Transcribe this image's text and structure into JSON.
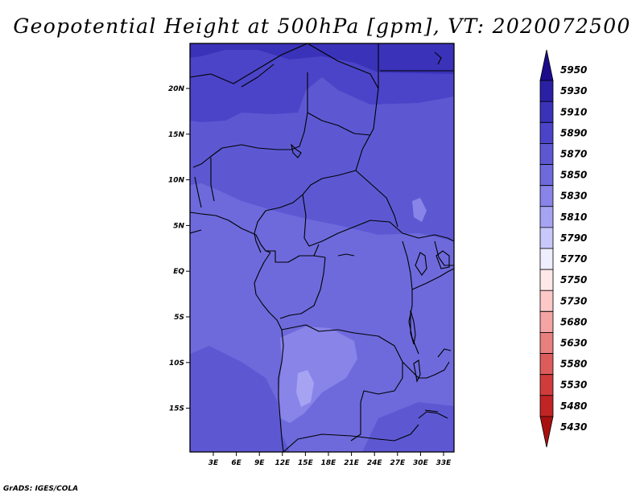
{
  "title": "Geopotential Height at 500hPa [gpm], VT: 2020072500",
  "footer": "GrADS: IGES/COLA",
  "lat_labels": [
    "20N",
    "15N",
    "10N",
    "5N",
    "EQ",
    "5S",
    "10S",
    "15S"
  ],
  "lon_labels": [
    "3E",
    "6E",
    "9E",
    "12E",
    "15E",
    "18E",
    "21E",
    "24E",
    "27E",
    "30E",
    "33E"
  ],
  "colorbar": {
    "labels": [
      "5950",
      "5930",
      "5910",
      "5890",
      "5870",
      "5850",
      "5830",
      "5810",
      "5790",
      "5770",
      "5750",
      "5730",
      "5680",
      "5630",
      "5580",
      "5530",
      "5480",
      "5430"
    ],
    "colors": [
      "#1c0c8c",
      "#2a20a4",
      "#3a32b8",
      "#4b44c8",
      "#5d58d2",
      "#6e6adc",
      "#8884e8",
      "#a6a4f2",
      "#c8c8fa",
      "#eeeeff",
      "#ffe8e8",
      "#fcc8c8",
      "#f4a4a4",
      "#e88080",
      "#dc5c5c",
      "#d03c3c",
      "#c02424",
      "#a81010"
    ]
  },
  "map_colors": {
    "c5850": "#6e6adc",
    "c5870": "#5d58d2",
    "c5890": "#4b44c8",
    "c5910": "#3a32b8",
    "c5830": "#8884e8",
    "c5810": "#a6a4f2"
  }
}
